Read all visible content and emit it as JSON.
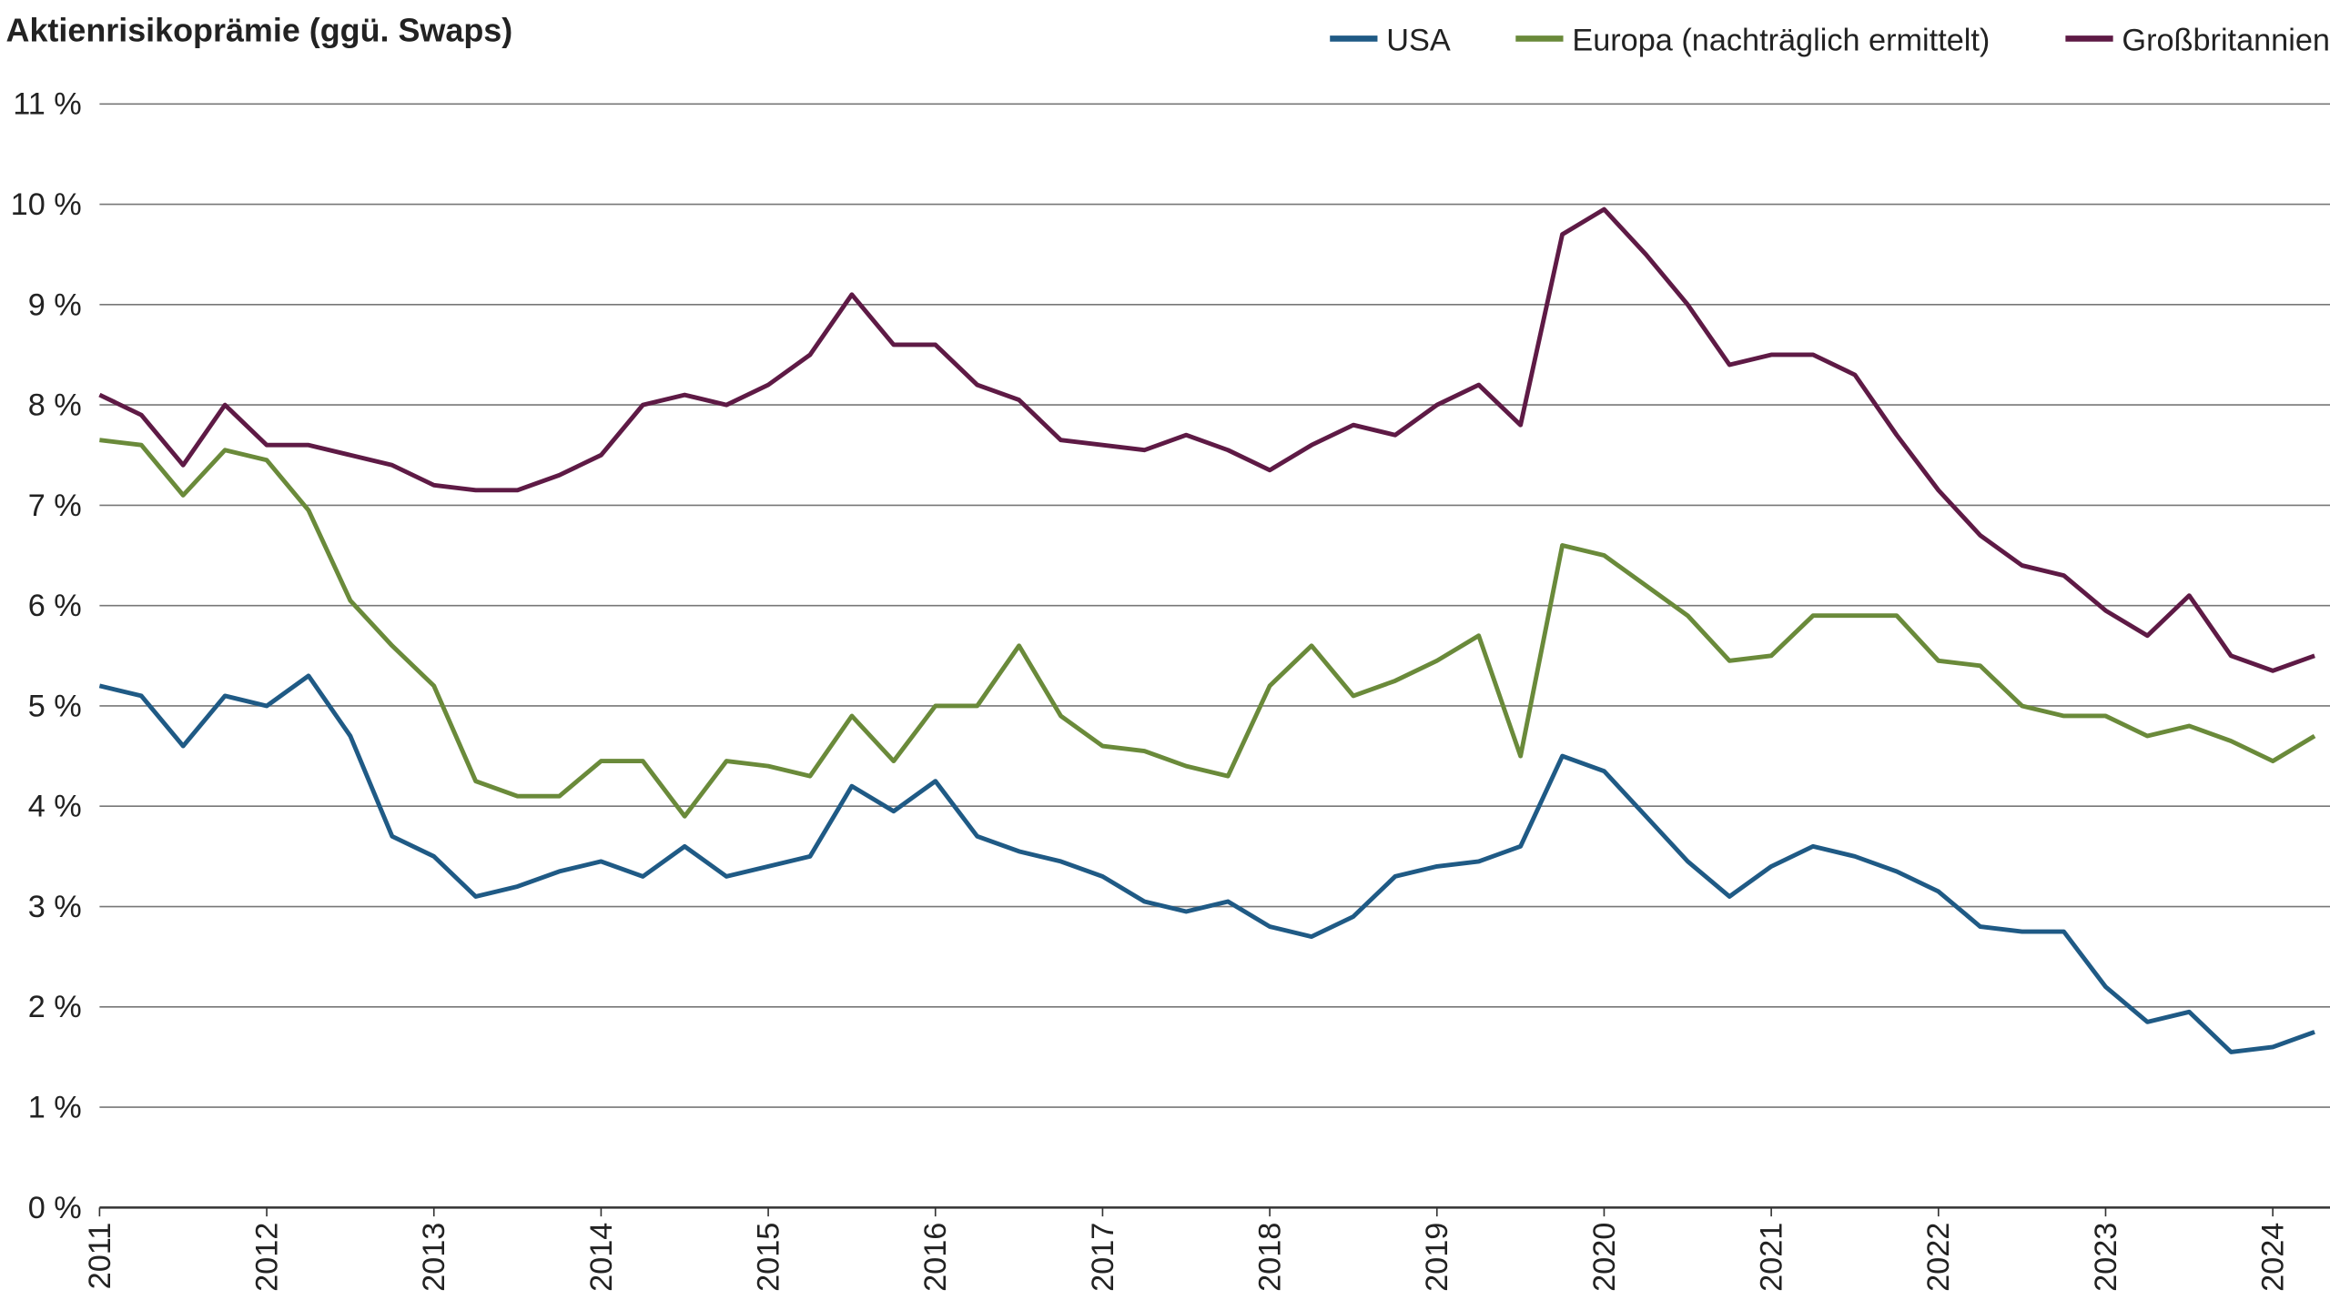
{
  "chart_data": {
    "type": "line",
    "title": "Aktienrisikoprämie (ggü. Swaps)",
    "x": [
      2011.0,
      2011.25,
      2011.5,
      2011.75,
      2012.0,
      2012.25,
      2012.5,
      2012.75,
      2013.0,
      2013.25,
      2013.5,
      2013.75,
      2014.0,
      2014.25,
      2014.5,
      2014.75,
      2015.0,
      2015.25,
      2015.5,
      2015.75,
      2016.0,
      2016.25,
      2016.5,
      2016.75,
      2017.0,
      2017.25,
      2017.5,
      2017.75,
      2018.0,
      2018.25,
      2018.5,
      2018.75,
      2019.0,
      2019.25,
      2019.5,
      2019.75,
      2020.0,
      2020.25,
      2020.5,
      2020.75,
      2021.0,
      2021.25,
      2021.5,
      2021.75,
      2022.0,
      2022.25,
      2022.5,
      2022.75,
      2023.0,
      2023.25,
      2023.5,
      2023.75,
      2024.0,
      2024.25
    ],
    "series": [
      {
        "name": "USA",
        "color": "#1f5a85",
        "values": [
          5.2,
          5.1,
          4.6,
          5.1,
          5.0,
          5.3,
          4.7,
          3.7,
          3.5,
          3.1,
          3.2,
          3.35,
          3.45,
          3.3,
          3.6,
          3.3,
          3.4,
          3.5,
          4.2,
          3.95,
          4.25,
          3.7,
          3.55,
          3.45,
          3.3,
          3.05,
          2.95,
          3.05,
          2.8,
          2.7,
          2.9,
          3.3,
          3.4,
          3.45,
          3.6,
          4.5,
          4.35,
          3.9,
          3.45,
          3.1,
          3.4,
          3.6,
          3.5,
          3.35,
          3.15,
          2.8,
          2.75,
          2.75,
          2.2,
          1.85,
          1.95,
          1.55,
          1.6,
          1.75
        ]
      },
      {
        "name": "Europa (nachträglich ermittelt)",
        "color": "#6a8a3a",
        "values": [
          7.65,
          7.6,
          7.1,
          7.55,
          7.45,
          6.95,
          6.05,
          5.6,
          5.2,
          4.25,
          4.1,
          4.1,
          4.45,
          4.45,
          3.9,
          4.45,
          4.4,
          4.3,
          4.9,
          4.45,
          5.0,
          5.0,
          5.6,
          4.9,
          4.6,
          4.55,
          4.4,
          4.3,
          5.2,
          5.6,
          5.1,
          5.25,
          5.45,
          5.7,
          4.5,
          6.6,
          6.5,
          6.2,
          5.9,
          5.45,
          5.5,
          5.9,
          5.9,
          5.9,
          5.45,
          5.4,
          5.0,
          4.9,
          4.9,
          4.7,
          4.8,
          4.65,
          4.45,
          4.7
        ]
      },
      {
        "name": "Großbritannien",
        "color": "#5e1a45",
        "values": [
          8.1,
          7.9,
          7.4,
          8.0,
          7.6,
          7.6,
          7.5,
          7.4,
          7.2,
          7.15,
          7.15,
          7.3,
          7.5,
          8.0,
          8.1,
          8.0,
          8.2,
          8.5,
          9.1,
          8.6,
          8.6,
          8.2,
          8.05,
          7.65,
          7.6,
          7.55,
          7.7,
          7.55,
          7.35,
          7.6,
          7.8,
          7.7,
          8.0,
          8.2,
          7.8,
          9.7,
          9.95,
          9.5,
          9.0,
          8.4,
          8.5,
          8.5,
          8.3,
          7.7,
          7.15,
          6.7,
          6.4,
          6.3,
          5.95,
          5.7,
          6.1,
          5.5,
          5.35,
          5.5
        ]
      }
    ],
    "xlim": [
      2011,
      2024.3
    ],
    "xticks": [
      2011,
      2012,
      2013,
      2014,
      2015,
      2016,
      2017,
      2018,
      2019,
      2020,
      2021,
      2022,
      2023,
      2024
    ],
    "ylim": [
      0,
      11
    ],
    "yticks": [
      {
        "value": 0,
        "label": "0 %"
      },
      {
        "value": 1,
        "label": "1 %"
      },
      {
        "value": 2,
        "label": "2 %"
      },
      {
        "value": 3,
        "label": "3 %"
      },
      {
        "value": 4,
        "label": "4 %"
      },
      {
        "value": 5,
        "label": "5 %"
      },
      {
        "value": 6,
        "label": "6 %"
      },
      {
        "value": 7,
        "label": "7 %"
      },
      {
        "value": 8,
        "label": "8 %"
      },
      {
        "value": 9,
        "label": "9 %"
      },
      {
        "value": 10,
        "label": "10 %"
      },
      {
        "value": 11,
        "label": "11 %"
      }
    ],
    "grid": true,
    "legend": "top-right"
  }
}
